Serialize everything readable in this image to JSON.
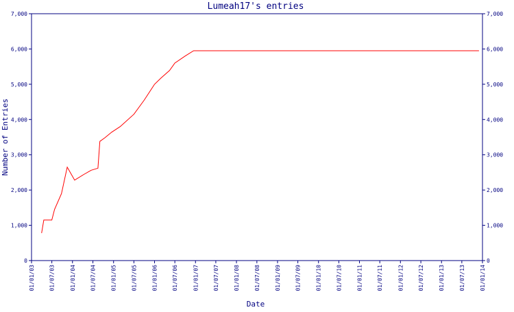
{
  "chart_data": {
    "type": "line",
    "title": "Lumeah17's entries",
    "xlabel": "Date",
    "ylabel": "Number of Entries",
    "ylim": [
      0,
      7000
    ],
    "yticks": [
      0,
      1000,
      2000,
      3000,
      4000,
      5000,
      6000,
      7000
    ],
    "ytick_labels": [
      "0",
      "1,000",
      "2,000",
      "3,000",
      "4,000",
      "5,000",
      "6,000",
      "7,000"
    ],
    "xlim": [
      "2003-01-01",
      "2014-01-01"
    ],
    "xtick_labels": [
      "01/01/03",
      "01/07/03",
      "01/01/04",
      "01/07/04",
      "01/01/05",
      "01/07/05",
      "01/01/06",
      "01/07/06",
      "01/01/07",
      "01/07/07",
      "01/01/08",
      "01/07/08",
      "01/01/09",
      "01/07/09",
      "01/01/10",
      "01/07/10",
      "01/01/11",
      "01/07/11",
      "01/01/12",
      "01/07/12",
      "01/01/13",
      "01/07/13",
      "01/01/14"
    ],
    "series": [
      {
        "color": "#ff0000",
        "points": [
          [
            "2003-04-01",
            780
          ],
          [
            "2003-04-20",
            1150
          ],
          [
            "2003-07-01",
            1150
          ],
          [
            "2003-07-25",
            1450
          ],
          [
            "2003-09-25",
            1900
          ],
          [
            "2003-11-15",
            2650
          ],
          [
            "2004-01-20",
            2280
          ],
          [
            "2004-04-15",
            2450
          ],
          [
            "2004-06-15",
            2560
          ],
          [
            "2004-08-15",
            2620
          ],
          [
            "2004-09-01",
            3380
          ],
          [
            "2004-10-15",
            3480
          ],
          [
            "2004-12-15",
            3640
          ],
          [
            "2005-03-01",
            3800
          ],
          [
            "2005-07-01",
            4150
          ],
          [
            "2005-10-01",
            4550
          ],
          [
            "2006-01-01",
            5000
          ],
          [
            "2006-03-01",
            5180
          ],
          [
            "2006-05-15",
            5390
          ],
          [
            "2006-07-01",
            5600
          ],
          [
            "2006-10-01",
            5800
          ],
          [
            "2006-12-15",
            5950
          ],
          [
            "2013-12-01",
            5950
          ]
        ]
      }
    ]
  }
}
